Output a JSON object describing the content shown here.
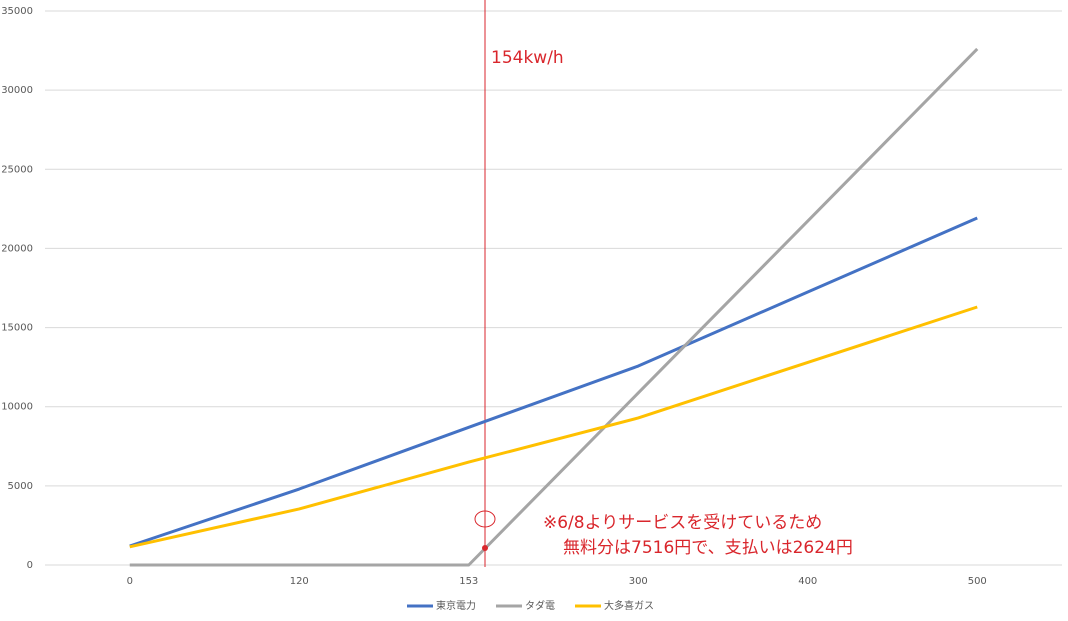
{
  "chart_data": {
    "type": "line",
    "categories": [
      "0",
      "120",
      "153",
      "300",
      "400",
      "500"
    ],
    "series": [
      {
        "name": "東京電力",
        "color": "#4472c4",
        "values": [
          1200,
          4800,
          8700,
          12570,
          17250,
          21920
        ]
      },
      {
        "name": "タダ電",
        "color": "#a5a5a5",
        "values": [
          0,
          0,
          0,
          10870,
          21730,
          32600
        ]
      },
      {
        "name": "大多喜ガス",
        "color": "#ffc000",
        "values": [
          1150,
          3540,
          6500,
          9290,
          12800,
          16300
        ]
      }
    ],
    "ylim": [
      0,
      35000
    ],
    "yticks": [
      0,
      5000,
      10000,
      15000,
      20000,
      25000,
      30000,
      35000
    ],
    "grid": true,
    "legend": "bottom",
    "annotations": [
      "154kw/h",
      "※6/8よりサービスを受けているため",
      "無料分は7516円で、支払いは2624円"
    ]
  }
}
